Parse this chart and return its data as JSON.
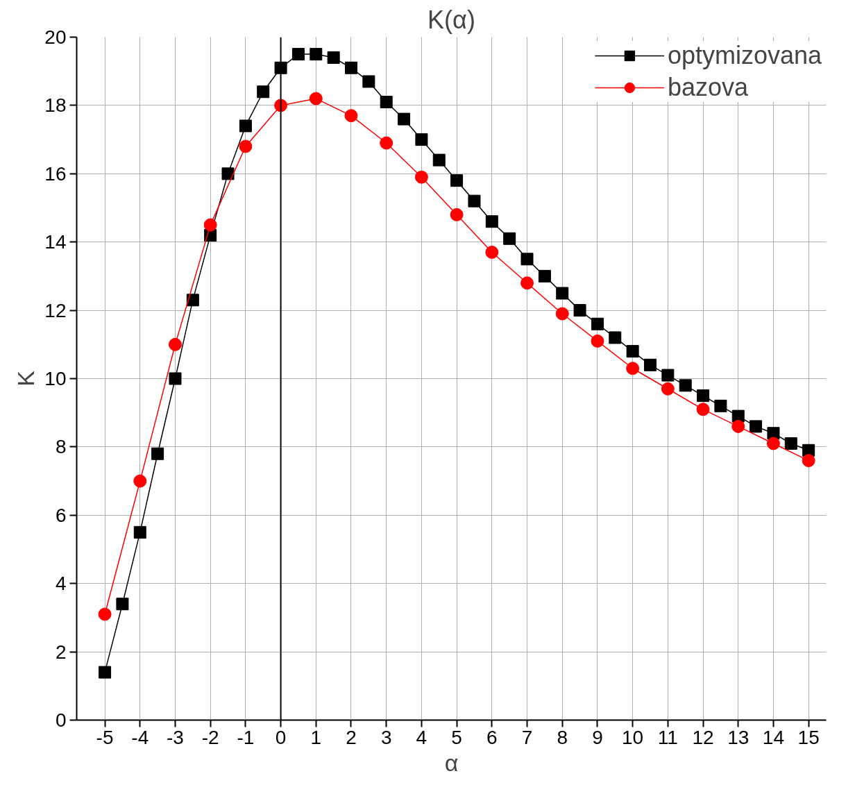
{
  "chart_data": {
    "type": "line",
    "title": "K(α)",
    "xlabel": "α",
    "ylabel": "K",
    "xlim": [
      -5.8,
      15.5
    ],
    "ylim": [
      0,
      20
    ],
    "xticks": [
      -5,
      -4,
      -3,
      -2,
      -1,
      0,
      1,
      2,
      3,
      4,
      5,
      6,
      7,
      8,
      9,
      10,
      11,
      12,
      13,
      14,
      15
    ],
    "yticks": [
      0,
      2,
      4,
      6,
      8,
      10,
      12,
      14,
      16,
      18,
      20
    ],
    "grid": true,
    "legend": "top right",
    "ref_lines": [
      {
        "axis": "x",
        "value": 0,
        "color": "#000000"
      }
    ],
    "series": [
      {
        "name": "optymizovana",
        "color": "#000000",
        "marker": "square",
        "x": [
          -5,
          -4.5,
          -4,
          -3.5,
          -3,
          -2.5,
          -2,
          -1.5,
          -1,
          -0.5,
          0,
          0.5,
          1,
          1.5,
          2,
          2.5,
          3,
          3.5,
          4,
          4.5,
          5,
          5.5,
          6,
          6.5,
          7,
          7.5,
          8,
          8.5,
          9,
          9.5,
          10,
          10.5,
          11,
          11.5,
          12,
          12.5,
          13,
          13.5,
          14,
          14.5,
          15
        ],
        "values": [
          1.4,
          3.4,
          5.5,
          7.8,
          10.0,
          12.3,
          14.2,
          16.0,
          17.4,
          18.4,
          19.1,
          19.5,
          19.5,
          19.4,
          19.1,
          18.7,
          18.1,
          17.6,
          17.0,
          16.4,
          15.8,
          15.2,
          14.6,
          14.1,
          13.5,
          13.0,
          12.5,
          12.0,
          11.6,
          11.2,
          10.8,
          10.4,
          10.1,
          9.8,
          9.5,
          9.2,
          8.9,
          8.6,
          8.4,
          8.1,
          7.9
        ]
      },
      {
        "name": "bazova",
        "color": "#ff0000",
        "marker": "circle",
        "x": [
          -5,
          -4,
          -3,
          -2,
          -1,
          0,
          1,
          2,
          3,
          4,
          5,
          6,
          7,
          8,
          9,
          10,
          11,
          12,
          13,
          14,
          15
        ],
        "values": [
          3.1,
          7.0,
          11.0,
          14.5,
          16.8,
          18.0,
          18.2,
          17.7,
          16.9,
          15.9,
          14.8,
          13.7,
          12.8,
          11.9,
          11.1,
          10.3,
          9.7,
          9.1,
          8.6,
          8.1,
          7.6
        ]
      }
    ]
  }
}
